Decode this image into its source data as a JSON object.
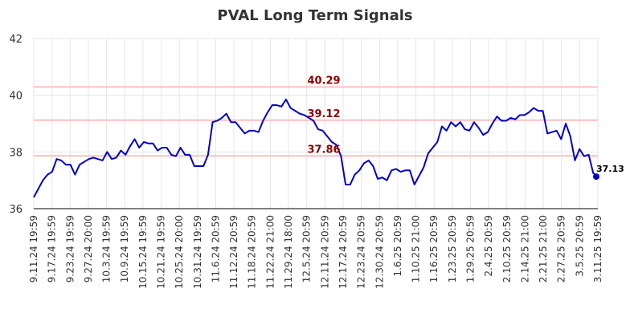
{
  "chart_data": {
    "type": "line",
    "title": "PVAL Long Term Signals",
    "xlabel": "",
    "ylabel": "",
    "ylim": [
      36,
      42
    ],
    "y_ticks": [
      36,
      38,
      40,
      42
    ],
    "grid": true,
    "x_tick_labels": [
      "9.11.24 19:59",
      "9.17.24 19:59",
      "9.23.24 19:59",
      "9.27.24 20:00",
      "10.3.24 19:59",
      "10.9.24 19:59",
      "10.15.24 19:59",
      "10.21.24 19:59",
      "10.25.24 20:00",
      "10.31.24 19:59",
      "11.6.24 20:59",
      "11.12.24 20:59",
      "11.18.24 20:59",
      "11.22.24 21:00",
      "11.29.24 18:00",
      "12.5.24 20:59",
      "12.11.24 20:59",
      "12.17.24 20:59",
      "12.23.24 20:59",
      "12.30.24 20:59",
      "1.6.25 20:59",
      "1.10.25 21:00",
      "1.16.25 20:59",
      "1.23.25 20:59",
      "1.29.25 20:59",
      "2.4.25 20:59",
      "2.10.25 20:59",
      "2.14.25 21:00",
      "2.21.25 21:00",
      "2.27.25 20:59",
      "3.5.25 20:59",
      "3.11.25 19:59"
    ],
    "horizontal_lines": [
      {
        "value": 40.29,
        "label": "40.29",
        "color": "#ffc0c0"
      },
      {
        "value": 39.12,
        "label": "39.12",
        "color": "#ffc0c0"
      },
      {
        "value": 37.86,
        "label": "37.86",
        "color": "#ffc0c0"
      }
    ],
    "series": [
      {
        "color": "#0000cc",
        "values": [
          36.4,
          36.7,
          37.0,
          37.2,
          37.3,
          37.75,
          37.7,
          37.55,
          37.55,
          37.2,
          37.55,
          37.65,
          37.75,
          37.8,
          37.75,
          37.7,
          38.0,
          37.75,
          37.8,
          38.05,
          37.9,
          38.2,
          38.45,
          38.15,
          38.35,
          38.3,
          38.3,
          38.05,
          38.15,
          38.15,
          37.9,
          37.85,
          38.15,
          37.9,
          37.9,
          37.5,
          37.5,
          37.5,
          37.9,
          39.05,
          39.1,
          39.2,
          39.35,
          39.05,
          39.05,
          38.85,
          38.65,
          38.75,
          38.75,
          38.7,
          39.1,
          39.4,
          39.65,
          39.65,
          39.6,
          39.85,
          39.55,
          39.45,
          39.35,
          39.3,
          39.2,
          39.1,
          38.8,
          38.75,
          38.55,
          38.35,
          38.25,
          37.85,
          36.85,
          36.85,
          37.2,
          37.35,
          37.6,
          37.7,
          37.5,
          37.05,
          37.1,
          37.0,
          37.35,
          37.4,
          37.3,
          37.35,
          37.35,
          36.85,
          37.15,
          37.45,
          37.95,
          38.15,
          38.35,
          38.9,
          38.75,
          39.05,
          38.9,
          39.05,
          38.8,
          38.75,
          39.05,
          38.85,
          38.6,
          38.7,
          39.0,
          39.25,
          39.1,
          39.1,
          39.2,
          39.15,
          39.3,
          39.3,
          39.4,
          39.55,
          39.45,
          39.45,
          38.65,
          38.7,
          38.75,
          38.45,
          39.0,
          38.55,
          37.7,
          38.1,
          37.85,
          37.9,
          37.25,
          37.13
        ]
      }
    ],
    "last_point_label": "37.13"
  }
}
